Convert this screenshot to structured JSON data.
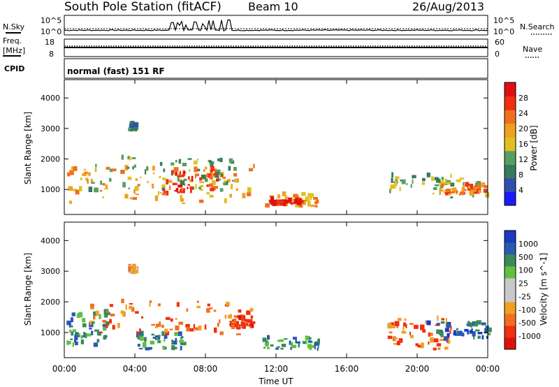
{
  "header": {
    "station": "South Pole Station (fitACF)",
    "beam": "Beam 10",
    "date": "26/Aug/2013"
  },
  "top_panels": {
    "nsky_label": "N.Sky",
    "nsky_ticks": [
      "10^5",
      "10^0"
    ],
    "nsearch_label": "N.Search",
    "nsearch_ticks": [
      "10^5",
      "10^0"
    ],
    "freq_label_1": "Freq.",
    "freq_label_2": "[MHz]",
    "freq_ticks": [
      "18",
      "8"
    ],
    "nave_label": "Nave",
    "nave_ticks": [
      "60",
      "0"
    ],
    "cpid_label": "CPID",
    "cpid_text": "normal (fast) 151 RF"
  },
  "colors": {
    "power_scale": [
      "#1a1aff",
      "#2f4fb0",
      "#3a7a5a",
      "#55a060",
      "#e0c020",
      "#f0a020",
      "#f07020",
      "#f03010",
      "#e01010"
    ],
    "velocity_scale": [
      "#e01010",
      "#f03010",
      "#f07020",
      "#f0a020",
      "#c8c8c8",
      "#c8c8c8",
      "#60c040",
      "#3a8a5a",
      "#2a5ab0",
      "#1a3ac0"
    ]
  },
  "chart_data": [
    {
      "type": "heatmap",
      "panel": "power",
      "ylabel": "Slant Range [km]",
      "yticks": [
        "1000",
        "2000",
        "3000",
        "4000"
      ],
      "ylim": [
        180,
        4600
      ],
      "xlim": [
        "00:00",
        "24:00"
      ],
      "colorbar_label": "Power [dB]",
      "colorbar_ticks": [
        "4",
        "8",
        "12",
        "16",
        "20",
        "24",
        "28"
      ],
      "regions": [
        {
          "t0": 0.1,
          "t1": 10.8,
          "r0": 500,
          "r1": 1700,
          "level": 5
        },
        {
          "t0": 0.8,
          "t1": 9.8,
          "r0": 900,
          "r1": 2000,
          "level": 3
        },
        {
          "t0": 5.5,
          "t1": 8.6,
          "r0": 800,
          "r1": 1600,
          "level": 7
        },
        {
          "t0": 11.1,
          "t1": 14.4,
          "r0": 400,
          "r1": 800,
          "level": 5
        },
        {
          "t0": 11.6,
          "t1": 13.4,
          "r0": 450,
          "r1": 600,
          "level": 8
        },
        {
          "t0": 18.4,
          "t1": 24.0,
          "r0": 700,
          "r1": 1400,
          "level": 3
        },
        {
          "t0": 21.2,
          "t1": 23.8,
          "r0": 800,
          "r1": 1100,
          "level": 6
        },
        {
          "t0": 3.6,
          "t1": 4.0,
          "r0": 2900,
          "r1": 3100,
          "level": 2
        }
      ]
    },
    {
      "type": "heatmap",
      "panel": "velocity",
      "ylabel": "Slant Range [km]",
      "yticks": [
        "1000",
        "2000",
        "3000",
        "4000"
      ],
      "ylim": [
        180,
        4600
      ],
      "xlim": [
        "00:00",
        "24:00"
      ],
      "xlabel": "Time UT",
      "xticks": [
        "00:00",
        "04:00",
        "08:00",
        "12:00",
        "16:00",
        "20:00",
        "00:00"
      ],
      "colorbar_label": "Velocity [m s^-1]",
      "colorbar_ticks": [
        "1000",
        "500",
        "100",
        "25",
        "-25",
        "-100",
        "-500",
        "-1000"
      ],
      "regions": [
        {
          "t0": 0.1,
          "t1": 2.6,
          "r0": 500,
          "r1": 1600,
          "level": 7
        },
        {
          "t0": 1.4,
          "t1": 10.8,
          "r0": 900,
          "r1": 2000,
          "level": 2
        },
        {
          "t0": 4.0,
          "t1": 7.0,
          "r0": 400,
          "r1": 900,
          "level": 7
        },
        {
          "t0": 9.2,
          "t1": 10.6,
          "r0": 1100,
          "r1": 1500,
          "level": 1
        },
        {
          "t0": 11.2,
          "t1": 14.4,
          "r0": 400,
          "r1": 800,
          "level": 7
        },
        {
          "t0": 18.3,
          "t1": 22.0,
          "r0": 400,
          "r1": 1400,
          "level": 2
        },
        {
          "t0": 20.5,
          "t1": 24.0,
          "r0": 700,
          "r1": 1300,
          "level": 8
        },
        {
          "t0": 3.6,
          "t1": 4.0,
          "r0": 2900,
          "r1": 3100,
          "level": 3
        }
      ]
    }
  ]
}
